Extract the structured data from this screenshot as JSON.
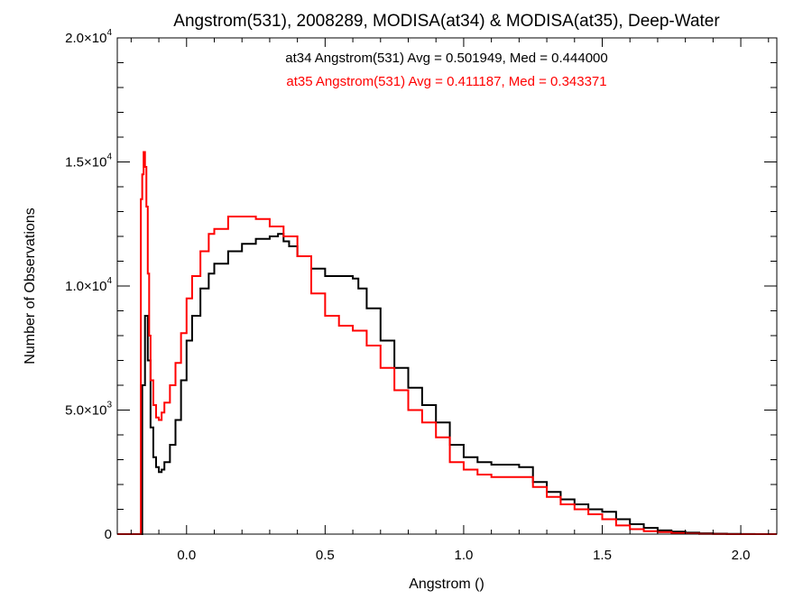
{
  "chart_data": {
    "type": "line",
    "title": "Angstrom(531), 2008289, MODISA(at34) & MODISA(at35), Deep-Water",
    "xlabel": "Angstrom ()",
    "ylabel": "Number of Observations",
    "xlim": [
      -0.25,
      2.13
    ],
    "ylim": [
      0,
      20000
    ],
    "grid": false,
    "x_ticks": [
      {
        "value": 0.0,
        "label": "0.0"
      },
      {
        "value": 0.5,
        "label": "0.5"
      },
      {
        "value": 1.0,
        "label": "1.0"
      },
      {
        "value": 1.5,
        "label": "1.5"
      },
      {
        "value": 2.0,
        "label": "2.0"
      }
    ],
    "y_ticks": [
      {
        "value": 0,
        "mant": "0",
        "exp": ""
      },
      {
        "value": 5000,
        "mant": "5.0×10",
        "exp": "3"
      },
      {
        "value": 10000,
        "mant": "1.0×10",
        "exp": "4"
      },
      {
        "value": 15000,
        "mant": "1.5×10",
        "exp": "4"
      },
      {
        "value": 20000,
        "mant": "2.0×10",
        "exp": "4"
      }
    ],
    "annotations": [
      {
        "text": "at34 Angstrom(531) Avg = 0.501949, Med = 0.444000",
        "color": "#000000"
      },
      {
        "text": "at35 Angstrom(531) Avg = 0.411187, Med = 0.343371",
        "color": "#ff0000"
      }
    ],
    "series": [
      {
        "color": "#000000",
        "x": [
          -0.25,
          -0.17,
          -0.16,
          -0.15,
          -0.14,
          -0.13,
          -0.12,
          -0.11,
          -0.1,
          -0.09,
          -0.08,
          -0.06,
          -0.04,
          -0.02,
          0.0,
          0.02,
          0.05,
          0.08,
          0.1,
          0.15,
          0.2,
          0.25,
          0.3,
          0.33,
          0.35,
          0.37,
          0.4,
          0.45,
          0.5,
          0.55,
          0.6,
          0.62,
          0.65,
          0.7,
          0.75,
          0.8,
          0.85,
          0.9,
          0.95,
          1.0,
          1.05,
          1.1,
          1.15,
          1.2,
          1.25,
          1.3,
          1.35,
          1.4,
          1.45,
          1.5,
          1.55,
          1.6,
          1.65,
          1.7,
          1.75,
          1.8,
          1.85,
          1.9,
          1.95,
          2.0,
          2.05,
          2.1,
          2.13
        ],
        "y": [
          0,
          0,
          6000,
          8800,
          7000,
          4300,
          3100,
          2700,
          2500,
          2600,
          2900,
          3600,
          4600,
          6200,
          7800,
          8800,
          9900,
          10500,
          10900,
          11400,
          11700,
          11900,
          12000,
          12100,
          11800,
          11600,
          11200,
          10700,
          10400,
          10400,
          10300,
          9900,
          9100,
          7800,
          6700,
          5900,
          5200,
          4500,
          3600,
          3100,
          2900,
          2800,
          2800,
          2700,
          2100,
          1700,
          1400,
          1200,
          1000,
          900,
          600,
          400,
          250,
          150,
          100,
          60,
          30,
          20,
          10,
          5,
          0,
          0,
          0
        ]
      },
      {
        "color": "#ff0000",
        "x": [
          -0.25,
          -0.17,
          -0.165,
          -0.16,
          -0.155,
          -0.15,
          -0.145,
          -0.14,
          -0.135,
          -0.13,
          -0.12,
          -0.11,
          -0.1,
          -0.09,
          -0.08,
          -0.06,
          -0.04,
          -0.02,
          0.0,
          0.02,
          0.05,
          0.08,
          0.1,
          0.15,
          0.2,
          0.25,
          0.3,
          0.35,
          0.4,
          0.45,
          0.5,
          0.55,
          0.6,
          0.65,
          0.7,
          0.75,
          0.8,
          0.85,
          0.9,
          0.95,
          1.0,
          1.05,
          1.1,
          1.15,
          1.2,
          1.25,
          1.3,
          1.35,
          1.4,
          1.45,
          1.5,
          1.55,
          1.6,
          1.65,
          1.7,
          1.75,
          1.8,
          1.85,
          1.9,
          1.95,
          2.0,
          2.05,
          2.1,
          2.13
        ],
        "y": [
          0,
          0,
          13500,
          14500,
          15400,
          14800,
          13200,
          10500,
          8000,
          6200,
          5200,
          4700,
          4600,
          4900,
          5300,
          6000,
          6900,
          8100,
          9500,
          10400,
          11400,
          12100,
          12300,
          12800,
          12800,
          12700,
          12400,
          12000,
          11200,
          9700,
          8800,
          8400,
          8200,
          7600,
          6700,
          5800,
          5000,
          4500,
          3900,
          2900,
          2600,
          2400,
          2300,
          2300,
          2300,
          1900,
          1500,
          1200,
          1000,
          800,
          600,
          350,
          200,
          120,
          80,
          40,
          20,
          10,
          5,
          0,
          0,
          0,
          0,
          0
        ]
      }
    ]
  }
}
